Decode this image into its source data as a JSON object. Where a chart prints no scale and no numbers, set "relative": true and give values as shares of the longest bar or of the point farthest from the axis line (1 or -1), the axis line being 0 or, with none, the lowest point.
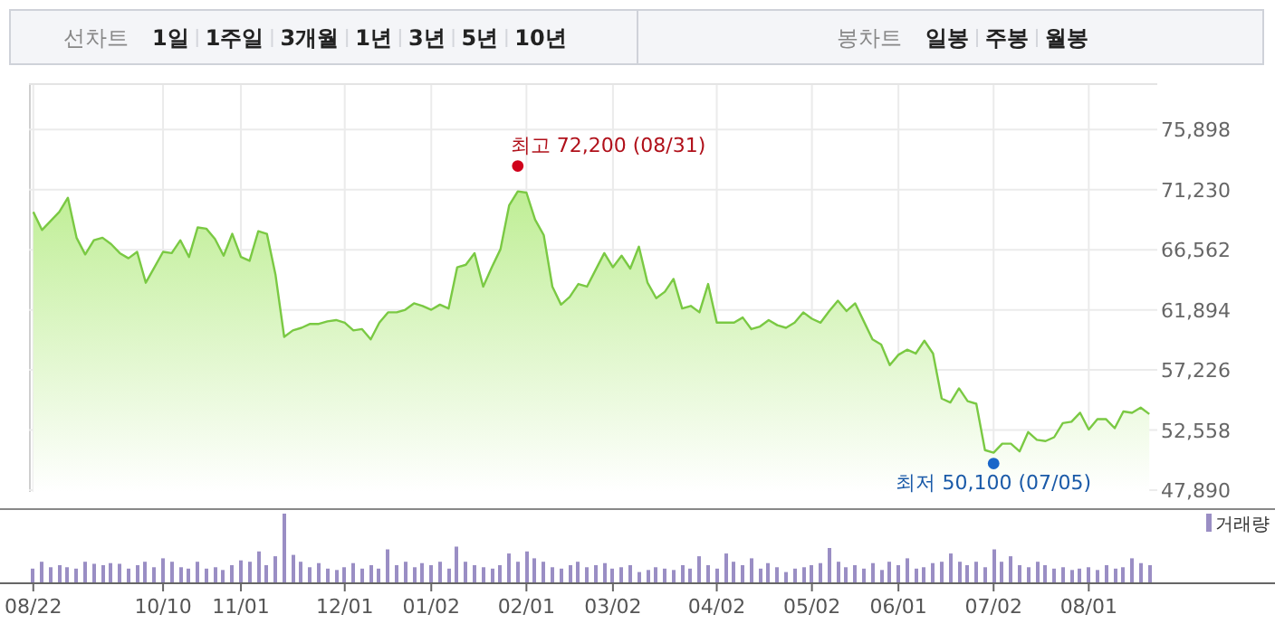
{
  "chart_data": [
    {
      "type": "other",
      "annotations": [
        "선차트",
        "1일",
        "1주일",
        "3개월",
        "1년",
        "3년",
        "5년",
        "10년"
      ]
    },
    {
      "type": "other",
      "annotations": [
        "봉차트",
        "일봉",
        "주봉",
        "월봉"
      ]
    },
    {
      "type": "area",
      "ylim": [
        47750,
        79500
      ],
      "tick_labels": "y",
      "grid": true,
      "categories": [
        null,
        null,
        null,
        null,
        null,
        null,
        null,
        null,
        null,
        null,
        null,
        null,
        null,
        null,
        null,
        null,
        null,
        null,
        null,
        null,
        null,
        null,
        null,
        null,
        null,
        null,
        null,
        null,
        null,
        null,
        null,
        null,
        null,
        null,
        null,
        null,
        null,
        null,
        null,
        null,
        null,
        null,
        null,
        null,
        null,
        null,
        null,
        null,
        null,
        null,
        null,
        null,
        null,
        null,
        null,
        null,
        null,
        null,
        null,
        null,
        null,
        null,
        null,
        null,
        null,
        null,
        null,
        null,
        null,
        null,
        null,
        null,
        null,
        null,
        null,
        null,
        null,
        null,
        null,
        null,
        null,
        null,
        null,
        null,
        null,
        null,
        null,
        null,
        null,
        null,
        null,
        null,
        null,
        null,
        null,
        null,
        null,
        null,
        null,
        null,
        null,
        null,
        null,
        null,
        null,
        null,
        null,
        null,
        null,
        null,
        null,
        null,
        null,
        null,
        null,
        null,
        null,
        null,
        null,
        null,
        null,
        null,
        null,
        null,
        null,
        null,
        null,
        null,
        null,
        null
      ],
      "yticks": [
        {
          "value": 47890,
          "label": "47,890"
        },
        {
          "value": 52558,
          "label": "52,558"
        },
        {
          "value": 57226,
          "label": "57,226"
        },
        {
          "value": 61894,
          "label": "61,894"
        },
        {
          "value": 66562,
          "label": "66,562"
        },
        {
          "value": 71230,
          "label": "71,230"
        },
        {
          "value": 75898,
          "label": "75,898"
        }
      ],
      "series": [
        {
          "color": "#7ac943",
          "values": [
            69500,
            68100,
            68800,
            69500,
            70600,
            67500,
            66200,
            67300,
            67500,
            67000,
            66300,
            65900,
            66400,
            64000,
            65200,
            66400,
            66300,
            67300,
            66000,
            68300,
            68200,
            67400,
            66100,
            67800,
            66000,
            65700,
            68000,
            67800,
            64600,
            59800,
            60300,
            60500,
            60800,
            60800,
            61000,
            61100,
            60900,
            60300,
            60400,
            59600,
            60900,
            61700,
            61700,
            61900,
            62400,
            62200,
            61900,
            62300,
            62000,
            65200,
            65400,
            66300,
            63700,
            65200,
            66600,
            70000,
            71100,
            71000,
            68900,
            67700,
            63700,
            62300,
            62900,
            63900,
            63700,
            65000,
            66300,
            65200,
            66100,
            65100,
            66800,
            64000,
            62800,
            63300,
            64300,
            62000,
            62200,
            61700,
            63900,
            60900,
            60900,
            60900,
            61300,
            60400,
            60600,
            61100,
            60700,
            60500,
            60900,
            61700,
            61200,
            60900,
            61800,
            62600,
            61800,
            62400,
            61000,
            59600,
            59200,
            57600,
            58400,
            58800,
            58500,
            59500,
            58500,
            55000,
            54700,
            55800,
            54800,
            54600,
            51000,
            50800,
            51500,
            51500,
            50900,
            52400,
            51800,
            51700,
            52000,
            53100,
            53200,
            53900,
            52600,
            53400,
            53400,
            52700,
            54000,
            53900,
            54300,
            53800
          ]
        }
      ],
      "annotations": [
        "최고 72,200 (08/31)",
        "최저 50,100 (07/05)"
      ]
    },
    {
      "type": "bar",
      "relative": true,
      "legend": "top right",
      "categories": [
        "08/22",
        null,
        null,
        null,
        null,
        null,
        null,
        null,
        null,
        null,
        null,
        null,
        null,
        null,
        null,
        "10/10",
        null,
        null,
        null,
        null,
        null,
        null,
        null,
        null,
        "11/01",
        null,
        null,
        null,
        null,
        null,
        null,
        null,
        null,
        null,
        null,
        null,
        "12/01",
        null,
        null,
        null,
        null,
        null,
        null,
        null,
        null,
        null,
        "01/02",
        null,
        null,
        null,
        null,
        null,
        null,
        null,
        null,
        null,
        null,
        "02/01",
        null,
        null,
        null,
        null,
        null,
        null,
        null,
        null,
        null,
        "03/02",
        null,
        null,
        null,
        null,
        null,
        null,
        null,
        null,
        null,
        null,
        null,
        "04/02",
        null,
        null,
        null,
        null,
        null,
        null,
        null,
        null,
        null,
        null,
        "05/02",
        null,
        null,
        null,
        null,
        null,
        null,
        null,
        null,
        null,
        "06/01",
        null,
        null,
        null,
        null,
        null,
        null,
        null,
        null,
        null,
        null,
        "07/02",
        null,
        null,
        null,
        null,
        null,
        null,
        null,
        null,
        null,
        null,
        "08/01",
        null,
        null,
        null,
        null,
        null,
        null,
        null
      ],
      "series": [
        {
          "name": "거래량",
          "color": "#9a8ec4",
          "values": [
            0.2,
            0.3,
            0.22,
            0.25,
            0.22,
            0.2,
            0.3,
            0.27,
            0.25,
            0.28,
            0.27,
            0.2,
            0.25,
            0.3,
            0.22,
            0.35,
            0.3,
            0.22,
            0.2,
            0.3,
            0.2,
            0.22,
            0.18,
            0.25,
            0.32,
            0.3,
            0.45,
            0.25,
            0.38,
            1.0,
            0.4,
            0.3,
            0.22,
            0.28,
            0.2,
            0.18,
            0.22,
            0.28,
            0.2,
            0.25,
            0.2,
            0.48,
            0.25,
            0.3,
            0.22,
            0.28,
            0.25,
            0.3,
            0.2,
            0.52,
            0.3,
            0.25,
            0.22,
            0.2,
            0.25,
            0.42,
            0.3,
            0.45,
            0.35,
            0.3,
            0.22,
            0.2,
            0.25,
            0.3,
            0.22,
            0.25,
            0.28,
            0.2,
            0.22,
            0.25,
            0.15,
            0.18,
            0.22,
            0.2,
            0.18,
            0.25,
            0.2,
            0.38,
            0.25,
            0.2,
            0.42,
            0.3,
            0.25,
            0.35,
            0.2,
            0.28,
            0.22,
            0.15,
            0.2,
            0.22,
            0.25,
            0.28,
            0.5,
            0.3,
            0.22,
            0.25,
            0.2,
            0.28,
            0.18,
            0.3,
            0.25,
            0.35,
            0.2,
            0.22,
            0.28,
            0.3,
            0.42,
            0.3,
            0.25,
            0.3,
            0.22,
            0.48,
            0.3,
            0.38,
            0.25,
            0.22,
            0.3,
            0.25,
            0.2,
            0.22,
            0.18,
            0.2,
            0.22,
            0.18,
            0.25,
            0.2,
            0.22,
            0.35,
            0.28,
            0.25
          ]
        }
      ]
    }
  ]
}
